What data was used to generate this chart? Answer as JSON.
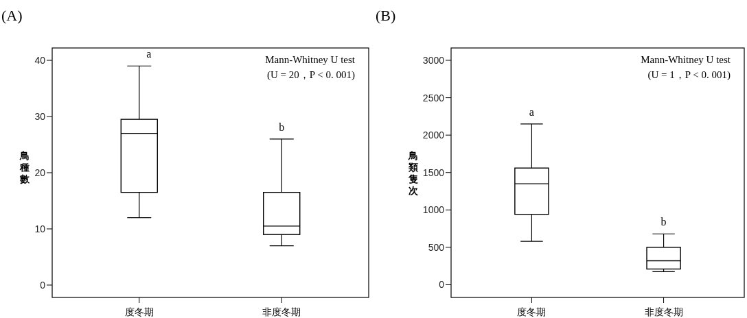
{
  "chart_data": [
    {
      "type": "box",
      "title": "(A)",
      "ylabel": "鳥種數",
      "categories": [
        "度冬期",
        "非度冬期"
      ],
      "boxes": [
        {
          "low": 12,
          "q1": 16.5,
          "median": 27,
          "q3": 29.5,
          "high": 39
        },
        {
          "low": 7,
          "q1": 9,
          "median": 10.5,
          "q3": 16.5,
          "high": 26
        }
      ],
      "ylim": [
        -2.2,
        42.2
      ],
      "yticks": [
        0,
        10,
        20,
        30,
        40
      ],
      "annotations": [
        "Mann-Whitney U test",
        "(U = 20，P < 0. 001)",
        {
          "text": "a",
          "x": "度冬期",
          "y": 39
        },
        {
          "text": "b",
          "x": "非度冬期",
          "y": 26
        }
      ]
    },
    {
      "type": "box",
      "title": "(B)",
      "ylabel": "鳥類隻次",
      "categories": [
        "度冬期",
        "非度冬期"
      ],
      "boxes": [
        {
          "low": 580,
          "q1": 940,
          "median": 1350,
          "q3": 1560,
          "high": 2150
        },
        {
          "low": 175,
          "q1": 210,
          "median": 320,
          "q3": 500,
          "high": 680
        }
      ],
      "ylim": [
        -170,
        3165
      ],
      "yticks": [
        0,
        500,
        1000,
        1500,
        2000,
        2500,
        3000
      ],
      "annotations": [
        "Mann-Whitney U test",
        "(U = 1，P < 0. 001)",
        {
          "text": "a",
          "x": "度冬期",
          "y": 2150
        },
        {
          "text": "b",
          "x": "非度冬期",
          "y": 680
        }
      ]
    }
  ]
}
